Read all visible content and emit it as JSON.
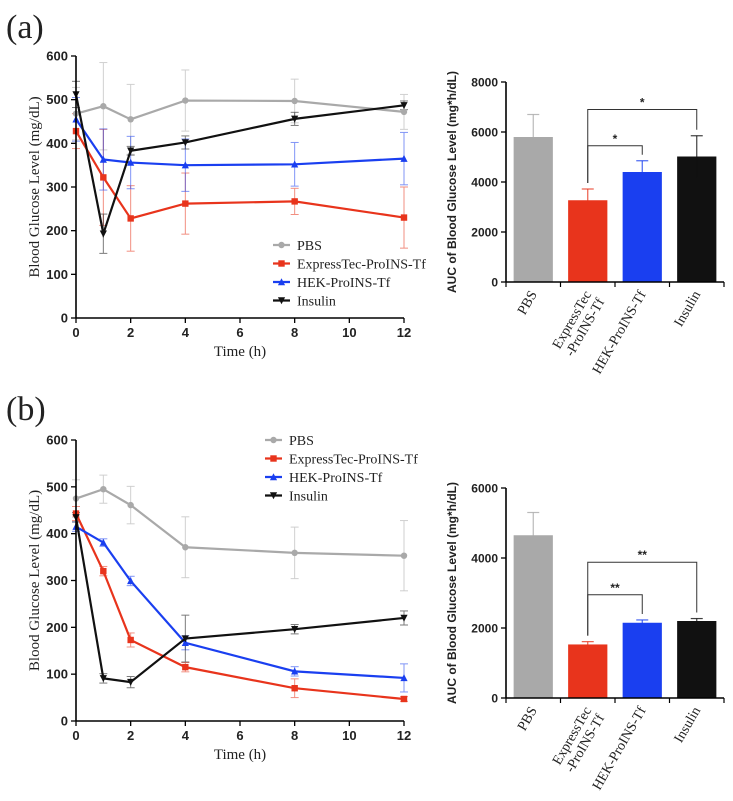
{
  "panel_labels": [
    "(a)",
    "(b)"
  ],
  "colors": {
    "PBS": "#a9a9a9",
    "ExpressTec": "#e8341c",
    "HEK": "#1a3ff0",
    "Insulin": "#111111"
  },
  "chart_data": [
    {
      "type": "line",
      "panel": "(a)",
      "title": "",
      "xlabel": "Time (h)",
      "ylabel": "Blood Glucose Level (mg/dL)",
      "xlim": [
        0,
        12
      ],
      "ylim": [
        0,
        600
      ],
      "xticks": [
        0,
        2,
        4,
        6,
        8,
        10,
        12
      ],
      "yticks": [
        0,
        100,
        200,
        300,
        400,
        500,
        600
      ],
      "legend_position": "lower-right",
      "series": [
        {
          "name": "PBS",
          "color": "#a9a9a9",
          "marker": "circle",
          "x": [
            0,
            1,
            2,
            4,
            8,
            12
          ],
          "y": [
            468,
            485,
            455,
            498,
            497,
            472
          ],
          "err": [
            60,
            100,
            80,
            70,
            50,
            40
          ]
        },
        {
          "name": "ExpressTec-ProINS-Tf",
          "color": "#e8341c",
          "marker": "square",
          "x": [
            0,
            1,
            2,
            4,
            8,
            12
          ],
          "y": [
            428,
            322,
            228,
            262,
            267,
            230
          ],
          "err": [
            40,
            110,
            75,
            70,
            30,
            70
          ]
        },
        {
          "name": "HEK-ProINS-Tf",
          "color": "#1a3ff0",
          "marker": "triangle",
          "x": [
            0,
            1,
            2,
            4,
            8,
            12
          ],
          "y": [
            455,
            363,
            356,
            350,
            352,
            365
          ],
          "err": [
            50,
            70,
            60,
            60,
            50,
            60
          ]
        },
        {
          "name": "Insulin",
          "color": "#111111",
          "marker": "triangle-down",
          "x": [
            0,
            1,
            2,
            4,
            8,
            12
          ],
          "y": [
            512,
            193,
            383,
            402,
            456,
            487
          ],
          "err": [
            30,
            45,
            10,
            15,
            15,
            10
          ]
        }
      ]
    },
    {
      "type": "bar",
      "panel": "(a)",
      "title": "",
      "xlabel": "",
      "ylabel": "AUC of Blood Glucose Level (mg*h/dL)",
      "ylim": [
        0,
        8000
      ],
      "yticks": [
        0,
        2000,
        4000,
        6000,
        8000
      ],
      "categories": [
        "PBS",
        "ExpressTec\n-ProINS-Tf",
        "HEK-ProINS-Tf",
        "Insulin"
      ],
      "values": [
        5800,
        3270,
        4400,
        5020
      ],
      "errors": [
        900,
        450,
        450,
        830
      ],
      "colors": [
        "#a9a9a9",
        "#e8341c",
        "#1a3ff0",
        "#111111"
      ],
      "significance": [
        {
          "from": 1,
          "to": 2,
          "label": "*",
          "y": 5450
        },
        {
          "from": 1,
          "to": 3,
          "label": "*",
          "y": 6900
        }
      ]
    },
    {
      "type": "line",
      "panel": "(b)",
      "title": "",
      "xlabel": "Time (h)",
      "ylabel": "Blood Glucose Level (mg/dL)",
      "xlim": [
        0,
        12
      ],
      "ylim": [
        0,
        600
      ],
      "xticks": [
        0,
        2,
        4,
        6,
        8,
        10,
        12
      ],
      "yticks": [
        0,
        100,
        200,
        300,
        400,
        500,
        600
      ],
      "legend_position": "top-right",
      "series": [
        {
          "name": "PBS",
          "color": "#a9a9a9",
          "marker": "circle",
          "x": [
            0,
            1,
            2,
            4,
            8,
            12
          ],
          "y": [
            475,
            495,
            461,
            371,
            359,
            353
          ],
          "err": [
            40,
            30,
            40,
            65,
            55,
            75
          ]
        },
        {
          "name": "ExpressTec-ProINS-Tf",
          "color": "#e8341c",
          "marker": "square",
          "x": [
            0,
            1,
            2,
            4,
            8,
            12
          ],
          "y": [
            443,
            320,
            173,
            115,
            70,
            47
          ],
          "err": [
            15,
            10,
            15,
            10,
            20,
            5
          ]
        },
        {
          "name": "HEK-ProINS-Tf",
          "color": "#1a3ff0",
          "marker": "triangle",
          "x": [
            0,
            1,
            2,
            4,
            8,
            12
          ],
          "y": [
            415,
            381,
            299,
            167,
            106,
            92
          ],
          "err": [
            10,
            8,
            10,
            15,
            10,
            30
          ]
        },
        {
          "name": "Insulin",
          "color": "#111111",
          "marker": "triangle-down",
          "x": [
            0,
            1,
            2,
            4,
            8,
            12
          ],
          "y": [
            435,
            91,
            83,
            176,
            196,
            220
          ],
          "err": [
            10,
            10,
            12,
            50,
            10,
            15
          ]
        }
      ]
    },
    {
      "type": "bar",
      "panel": "(b)",
      "title": "",
      "xlabel": "",
      "ylabel": "AUC of Blood Glucose Level (mg*h/dL)",
      "ylim": [
        0,
        6000
      ],
      "yticks": [
        0,
        2000,
        4000,
        6000
      ],
      "categories": [
        "PBS",
        "ExpressTec\n-ProINS-Tf",
        "HEK-ProINS-Tf",
        "Insulin"
      ],
      "values": [
        4650,
        1530,
        2150,
        2200
      ],
      "errors": [
        650,
        80,
        80,
        70
      ],
      "colors": [
        "#a9a9a9",
        "#e8341c",
        "#1a3ff0",
        "#111111"
      ],
      "significance": [
        {
          "from": 1,
          "to": 2,
          "label": "**",
          "y": 2950
        },
        {
          "from": 1,
          "to": 3,
          "label": "**",
          "y": 3880
        }
      ]
    }
  ]
}
